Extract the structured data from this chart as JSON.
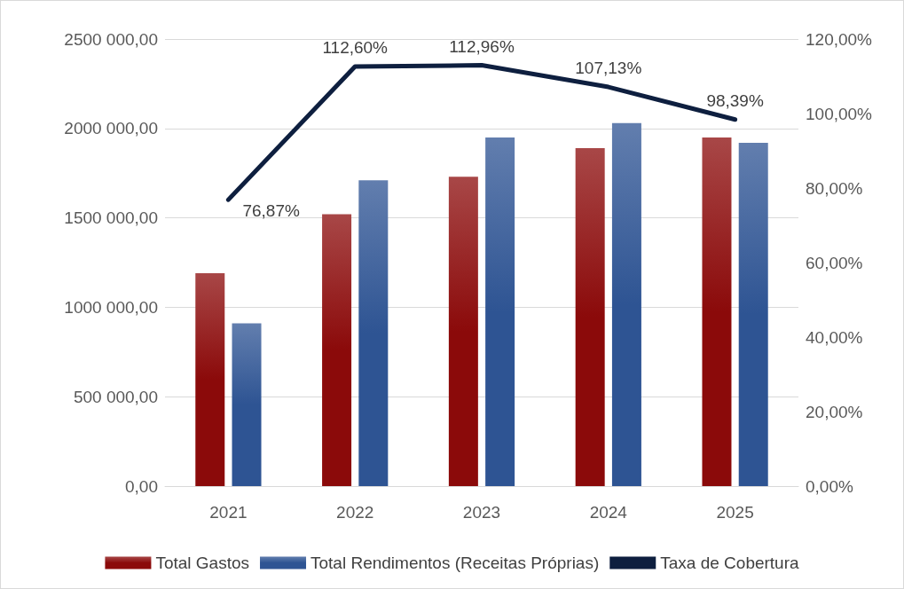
{
  "chart_data": {
    "type": "bar",
    "categories": [
      "2021",
      "2022",
      "2023",
      "2024",
      "2025"
    ],
    "series": [
      {
        "name": "Total Gastos",
        "color": "#8b0a0a",
        "values": [
          1190000,
          1520000,
          1730000,
          1890000,
          1950000
        ]
      },
      {
        "name": "Total Rendimentos (Receitas Próprias)",
        "color": "#2e5493",
        "values": [
          910000,
          1710000,
          1950000,
          2030000,
          1920000
        ]
      },
      {
        "name": "Taxa de Cobertura",
        "type": "line",
        "axis": "y2",
        "color": "#0e1f3f",
        "values": [
          76.87,
          112.6,
          112.96,
          107.13,
          98.39
        ],
        "value_labels": [
          "76,87%",
          "112,60%",
          "112,96%",
          "107,13%",
          "98,39%"
        ],
        "marker": "none"
      }
    ],
    "ylim": [
      0,
      2500000
    ],
    "yticks": [
      {
        "value": 0,
        "label": "0,00"
      },
      {
        "value": 500000,
        "label": "500 000,00"
      },
      {
        "value": 1000000,
        "label": "1000 000,00"
      },
      {
        "value": 1500000,
        "label": "1500 000,00"
      },
      {
        "value": 2000000,
        "label": "2000 000,00"
      },
      {
        "value": 2500000,
        "label": "2500 000,00"
      }
    ],
    "y2lim": [
      0,
      120
    ],
    "y2ticks": [
      {
        "value": 0,
        "label": "0,00%"
      },
      {
        "value": 20,
        "label": "20,00%"
      },
      {
        "value": 40,
        "label": "40,00%"
      },
      {
        "value": 60,
        "label": "60,00%"
      },
      {
        "value": 80,
        "label": "80,00%"
      },
      {
        "value": 100,
        "label": "100,00%"
      },
      {
        "value": 120,
        "label": "120,00%"
      }
    ],
    "grid": "y",
    "legend": "bottom"
  }
}
